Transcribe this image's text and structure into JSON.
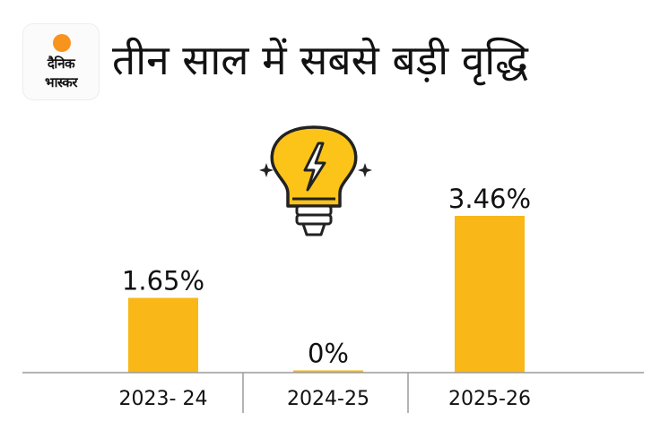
{
  "logo": {
    "line1": "दैनिक",
    "line2": "भास्कर",
    "sun_color": "#f7941d"
  },
  "title": "तीन साल में सबसे बड़ी वृद्धि",
  "icon": "lightbulb-lightning-icon",
  "colors": {
    "bar": "#f9b817",
    "axis": "#9a9a9a",
    "text": "#111111"
  },
  "chart_data": {
    "type": "bar",
    "categories": [
      "2023- 24",
      "2024-25",
      "2025-26"
    ],
    "values": [
      1.65,
      0,
      3.46
    ],
    "value_labels": [
      "1.65%",
      "0%",
      "3.46%"
    ],
    "ylim": [
      0,
      3.46
    ],
    "grid": false,
    "title": "",
    "xlabel": "",
    "ylabel": ""
  }
}
